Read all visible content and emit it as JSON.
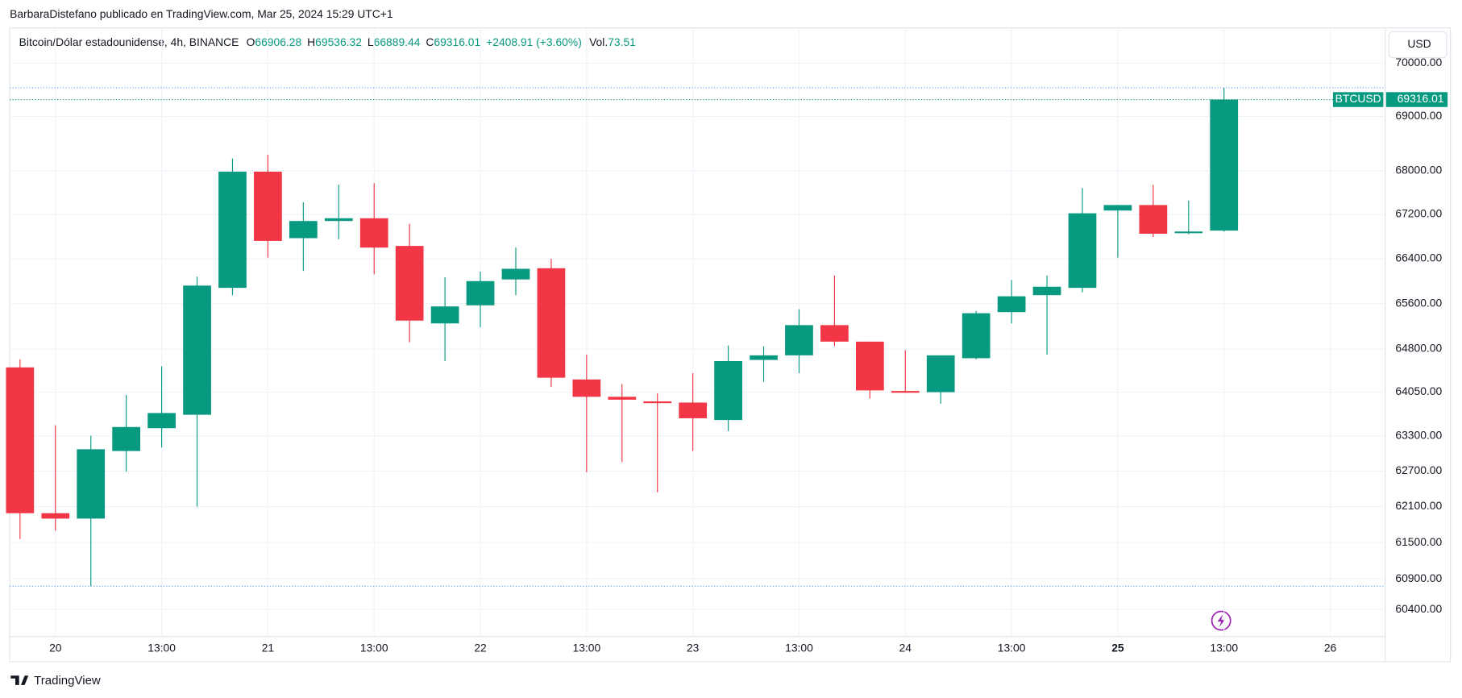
{
  "header": {
    "credit": "BarbaraDistefano publicado en TradingView.com, Mar 25, 2024 15:29 UTC+1",
    "currency_button": "USD",
    "footer": "TradingView"
  },
  "chart_data": {
    "type": "candlestick",
    "title": "Bitcoin/Dólar estadounidense, 4h, BINANCE",
    "legend_labels": {
      "open": "O",
      "high": "H",
      "low": "L",
      "close": "C",
      "volume": "Vol."
    },
    "change": "+2408.91 (+3.60%)",
    "volume": "73.51",
    "symbol": "BTCUSD",
    "up_color": "#089981",
    "down_color": "#f23645",
    "log_scale": true,
    "grid": true,
    "x": [
      0,
      1,
      2,
      3,
      4,
      5,
      6,
      7,
      8,
      9,
      10,
      11,
      12,
      13,
      14,
      15,
      16,
      17,
      18,
      19,
      20,
      21,
      22,
      23,
      24,
      25,
      26,
      27,
      28,
      29,
      30,
      31,
      32,
      33,
      34
    ],
    "open": [
      64480,
      61990,
      61900,
      63040,
      63430,
      63660,
      65880,
      67980,
      66770,
      67080,
      67130,
      66630,
      65250,
      65570,
      66030,
      66230,
      64270,
      63970,
      63890,
      63870,
      63570,
      64610,
      64690,
      65220,
      64930,
      64070,
      64050,
      64640,
      65450,
      65750,
      65880,
      67270,
      67370,
      66860,
      66906.28
    ],
    "high": [
      64620,
      63480,
      63300,
      64000,
      64500,
      66080,
      68220,
      68290,
      67420,
      67740,
      67770,
      67030,
      66070,
      66170,
      66600,
      66400,
      64700,
      64190,
      64030,
      64380,
      64860,
      64850,
      65500,
      66100,
      64930,
      64780,
      64690,
      65470,
      66020,
      66100,
      67680,
      67370,
      67740,
      67450,
      69536.32
    ],
    "low": [
      61560,
      61700,
      60780,
      62690,
      63100,
      62100,
      65750,
      66420,
      66180,
      66750,
      66120,
      64920,
      64590,
      65180,
      65750,
      64140,
      62680,
      62850,
      62340,
      63040,
      63380,
      64230,
      64380,
      64850,
      63940,
      64040,
      63850,
      64620,
      65250,
      64700,
      65800,
      66420,
      66790,
      66840,
      66889.44
    ],
    "close": [
      61990,
      61900,
      63070,
      63450,
      63690,
      65920,
      67980,
      66720,
      67080,
      67130,
      66600,
      65300,
      65550,
      66000,
      66220,
      64300,
      63970,
      63920,
      63860,
      63600,
      64590,
      64690,
      65220,
      64930,
      64080,
      64040,
      64690,
      65430,
      65730,
      65900,
      67220,
      67370,
      66850,
      66890,
      69316.01
    ],
    "xlim": [
      -0.29,
      38.55
    ],
    "xticks": [
      {
        "value": 1,
        "label": "20"
      },
      {
        "value": 4,
        "label": "13:00"
      },
      {
        "value": 7,
        "label": "21"
      },
      {
        "value": 10,
        "label": "13:00"
      },
      {
        "value": 13,
        "label": "22"
      },
      {
        "value": 16,
        "label": "13:00"
      },
      {
        "value": 19,
        "label": "23"
      },
      {
        "value": 22,
        "label": "13:00"
      },
      {
        "value": 25,
        "label": "24"
      },
      {
        "value": 28,
        "label": "13:00"
      },
      {
        "value": 31,
        "label": "25"
      },
      {
        "value": 34,
        "label": "13:00"
      },
      {
        "value": 37,
        "label": "26"
      }
    ],
    "ylim": [
      59960,
      70670
    ],
    "yticks": [
      {
        "value": 70000,
        "label": "70000.00"
      },
      {
        "value": 69000,
        "label": "69000.00"
      },
      {
        "value": 68000,
        "label": "68000.00"
      },
      {
        "value": 67200,
        "label": "67200.00"
      },
      {
        "value": 66400,
        "label": "66400.00"
      },
      {
        "value": 65600,
        "label": "65600.00"
      },
      {
        "value": 64800,
        "label": "64800.00"
      },
      {
        "value": 64050,
        "label": "64050.00"
      },
      {
        "value": 63300,
        "label": "63300.00"
      },
      {
        "value": 62700,
        "label": "62700.00"
      },
      {
        "value": 62100,
        "label": "62100.00"
      },
      {
        "value": 61500,
        "label": "61500.00"
      },
      {
        "value": 60900,
        "label": "60900.00"
      },
      {
        "value": 60400,
        "label": "60400.00"
      }
    ]
  }
}
